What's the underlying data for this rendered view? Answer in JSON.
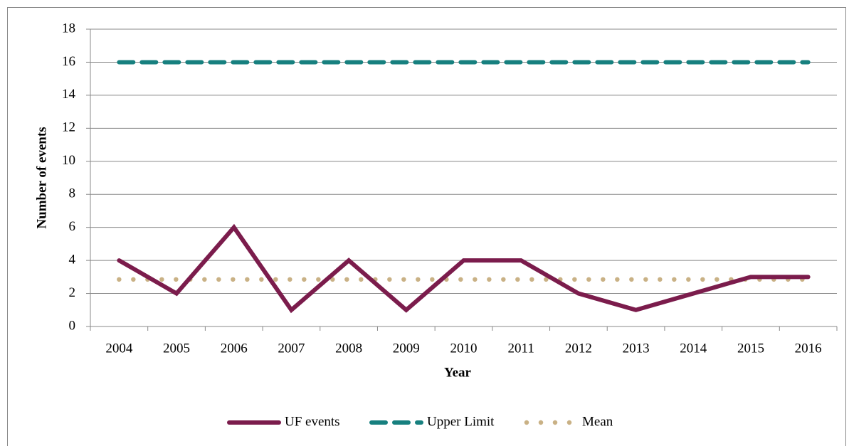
{
  "chart_data": {
    "type": "line",
    "xlabel": "Year",
    "ylabel": "Number of events",
    "categories": [
      "2004",
      "2005",
      "2006",
      "2007",
      "2008",
      "2009",
      "2010",
      "2011",
      "2012",
      "2013",
      "2014",
      "2015",
      "2016"
    ],
    "series": [
      {
        "name": "UF events",
        "color": "#7b1c4c",
        "style": "solid",
        "values": [
          4,
          2,
          6,
          1,
          4,
          1,
          4,
          4,
          2,
          1,
          2,
          3,
          3
        ]
      },
      {
        "name": "Upper Limit",
        "color": "#17807f",
        "style": "dashed",
        "values": [
          16,
          16,
          16,
          16,
          16,
          16,
          16,
          16,
          16,
          16,
          16,
          16,
          16
        ]
      },
      {
        "name": "Mean",
        "color": "#c9b185",
        "style": "dotted",
        "values": [
          2.85,
          2.85,
          2.85,
          2.85,
          2.85,
          2.85,
          2.85,
          2.85,
          2.85,
          2.85,
          2.85,
          2.85,
          2.85
        ]
      }
    ],
    "ylim": [
      0,
      18
    ],
    "yticks": [
      0,
      2,
      4,
      6,
      8,
      10,
      12,
      14,
      16,
      18
    ],
    "grid": true,
    "legend": "bottom"
  }
}
